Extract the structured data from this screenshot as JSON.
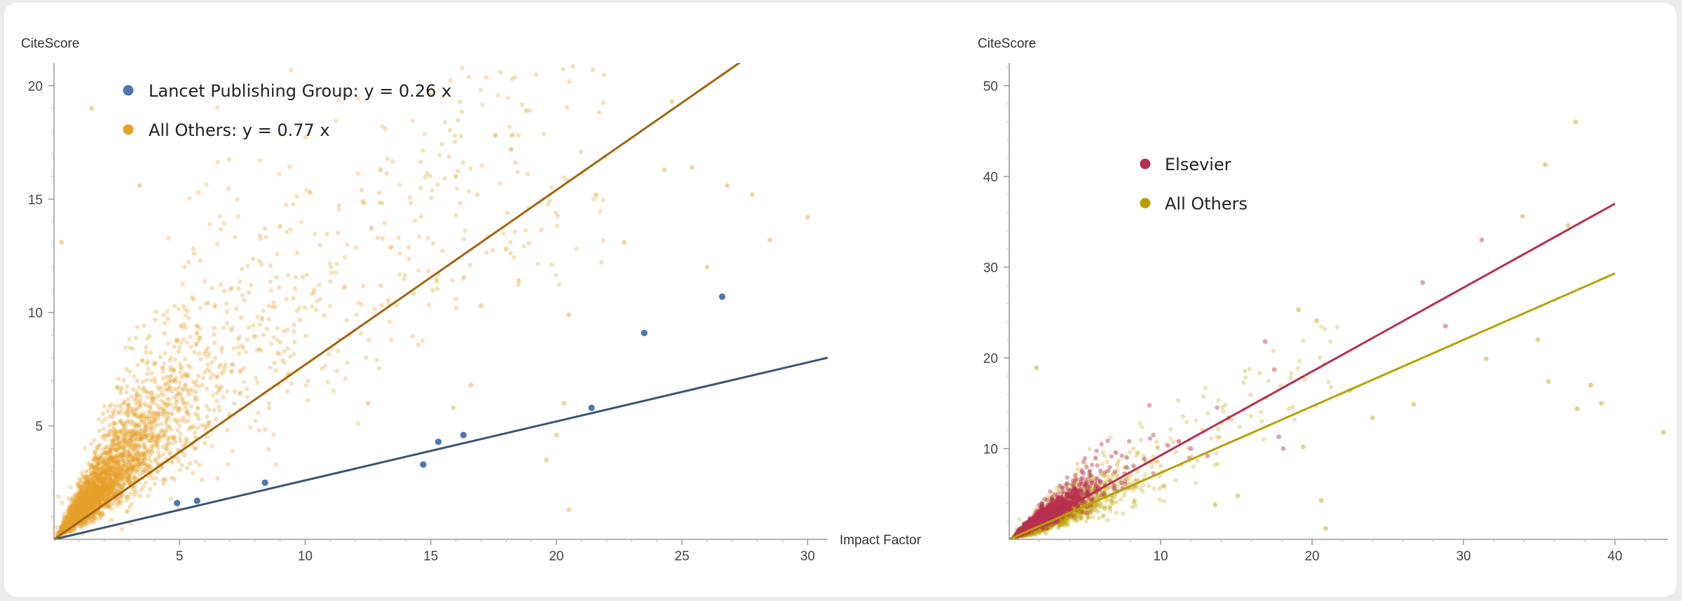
{
  "chart_data": [
    {
      "type": "scatter",
      "title": "",
      "xlabel": "Impact Factor",
      "ylabel": "CiteScore",
      "xlim": [
        0,
        30.8
      ],
      "ylim": [
        0,
        21
      ],
      "xticks": [
        5,
        10,
        15,
        20,
        25,
        30
      ],
      "yticks": [
        5,
        10,
        15,
        20
      ],
      "legend_position": "top-left",
      "series": [
        {
          "name": "Lancet Publishing Group",
          "legend_label": "Lancet Publishing Group: y = 0.26 x",
          "color": "#4a78b0",
          "fit_color": "#3b5478",
          "slope": 0.26,
          "points": [
            [
              4.9,
              1.6
            ],
            [
              5.7,
              1.7
            ],
            [
              8.4,
              2.5
            ],
            [
              14.7,
              3.3
            ],
            [
              15.3,
              4.3
            ],
            [
              16.3,
              4.6
            ],
            [
              21.4,
              5.8
            ],
            [
              23.5,
              9.1
            ],
            [
              26.6,
              10.7
            ]
          ]
        },
        {
          "name": "All Others",
          "legend_label": "All Others: y = 0.77 x",
          "color": "#e6a12a",
          "fit_color": "#a2650f",
          "slope": 0.77,
          "points": [
            [
              1.5,
              19.0
            ],
            [
              15.0,
              19.6
            ],
            [
              18.8,
              18.9
            ],
            [
              13.0,
              16.3
            ],
            [
              16.0,
              16.0
            ],
            [
              12.3,
              14.9
            ],
            [
              25.4,
              16.4
            ],
            [
              26.8,
              15.6
            ],
            [
              27.8,
              15.2
            ],
            [
              30.0,
              14.2
            ],
            [
              28.5,
              13.2
            ],
            [
              22.7,
              13.1
            ],
            [
              18.0,
              12.8
            ],
            [
              20.5,
              9.9
            ],
            [
              20.3,
              6.0
            ],
            [
              20.0,
              4.6
            ],
            [
              19.6,
              3.5
            ],
            [
              20.5,
              1.3
            ],
            [
              26.0,
              12.0
            ],
            [
              24.3,
              16.3
            ],
            [
              24.6,
              19.3
            ],
            [
              17.0,
              10.3
            ],
            [
              18.5,
              11.4
            ],
            [
              10.2,
              15.3
            ],
            [
              9.0,
              13.8
            ],
            [
              3.4,
              15.6
            ],
            [
              0.3,
              13.1
            ],
            [
              16.6,
              6.8
            ],
            [
              15.9,
              5.8
            ],
            [
              12.5,
              6.0
            ]
          ]
        }
      ]
    },
    {
      "type": "scatter",
      "title": "",
      "xlabel": "",
      "ylabel": "CiteScore",
      "xlim": [
        0,
        43.5
      ],
      "ylim": [
        0,
        52.5
      ],
      "xticks": [
        10,
        20,
        30,
        40
      ],
      "yticks": [
        10,
        20,
        30,
        40,
        50
      ],
      "legend_position": "top-left",
      "series": [
        {
          "name": "Elsevier",
          "legend_label": "Elsevier",
          "color": "#b8304f",
          "fit_color": "#b8304f",
          "slope": 0.925,
          "points": [
            [
              31.2,
              33.0
            ],
            [
              27.3,
              28.3
            ],
            [
              28.8,
              23.5
            ],
            [
              16.9,
              21.8
            ],
            [
              17.5,
              18.7
            ],
            [
              17.8,
              11.3
            ],
            [
              18.1,
              10.0
            ],
            [
              14.5,
              13.4
            ],
            [
              11.2,
              10.8
            ],
            [
              12.0,
              10.0
            ],
            [
              13.1,
              9.2
            ]
          ]
        },
        {
          "name": "All Others",
          "legend_label": "All Others",
          "color": "#b9a000",
          "fit_color": "#b9a000",
          "slope": 0.733,
          "points": [
            [
              37.4,
              46.0
            ],
            [
              35.4,
              41.3
            ],
            [
              33.9,
              35.6
            ],
            [
              36.9,
              34.6
            ],
            [
              34.9,
              22.0
            ],
            [
              35.6,
              17.4
            ],
            [
              38.4,
              17.0
            ],
            [
              39.1,
              15.0
            ],
            [
              37.5,
              14.4
            ],
            [
              43.2,
              11.8
            ],
            [
              31.5,
              19.9
            ],
            [
              19.1,
              25.3
            ],
            [
              20.3,
              24.1
            ],
            [
              22.5,
              16.4
            ],
            [
              20.6,
              4.3
            ],
            [
              19.4,
              10.2
            ],
            [
              24.0,
              13.4
            ],
            [
              1.8,
              18.9
            ],
            [
              15.1,
              4.8
            ],
            [
              13.6,
              3.8
            ],
            [
              20.9,
              1.2
            ],
            [
              26.7,
              14.9
            ]
          ]
        }
      ]
    }
  ]
}
